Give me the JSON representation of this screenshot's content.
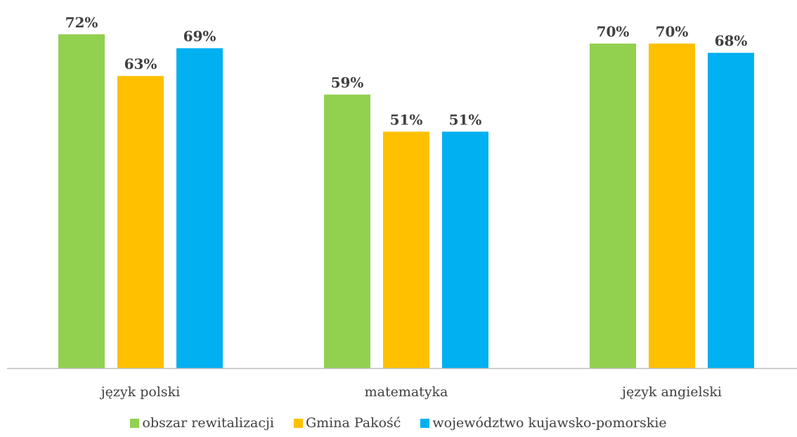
{
  "chart_data": {
    "type": "bar",
    "categories": [
      "język polski",
      "matematyka",
      "język angielski"
    ],
    "series": [
      {
        "name": "obszar rewitalizacji",
        "values": [
          72,
          59,
          70
        ],
        "color": "#92D050"
      },
      {
        "name": "Gmina Pakość",
        "values": [
          63,
          51,
          70
        ],
        "color": "#FFC000"
      },
      {
        "name": "województwo kujawsko-pomorskie",
        "values": [
          69,
          51,
          68
        ],
        "color": "#00B0F0"
      }
    ],
    "value_suffix": "%",
    "ylim": [
      0,
      75
    ],
    "grid": false,
    "legend": "bottom",
    "axis_color": "#BFBFBF",
    "label_color": "#404040"
  }
}
